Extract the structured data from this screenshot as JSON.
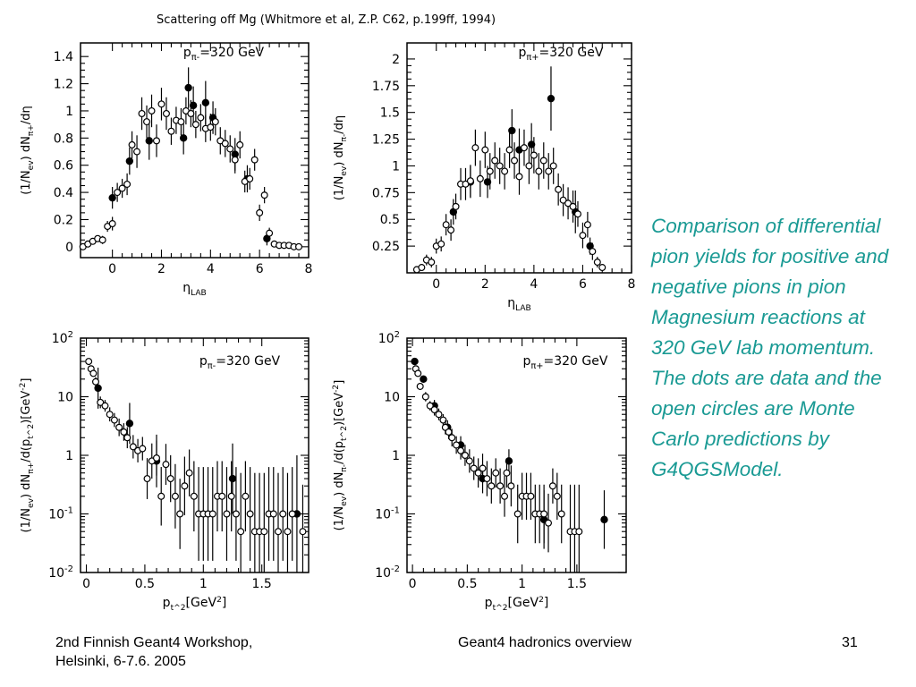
{
  "figure_title": "Scattering off Mg (Whitmore et al, Z.P. C62, p.199ff, 1994)",
  "side_text": "Comparison of differential pion yields for positive and negative pions in pion Magnesium reactions at 320 GeV lab momentum. The dots are data and the open circles are Monte Carlo predictions by G4QGSModel.",
  "footer": {
    "left_line1": "2nd Finnish Geant4 Workshop,",
    "left_line2": "Helsinki, 6-7.6. 2005",
    "center": "Geant4 hadronics overview",
    "page": "31"
  },
  "chart_data": [
    {
      "type": "scatter",
      "annotation": "p_{π-}=320 GeV",
      "xlabel": "η_{LAB}",
      "ylabel": "(1/N_{ev}) dN_{π+}/dη",
      "xlim": [
        -1.3,
        8
      ],
      "ylim": [
        -0.08,
        1.5
      ],
      "yscale": "linear",
      "xticks": [
        0,
        2,
        4,
        6,
        8
      ],
      "yticks": [
        0,
        0.2,
        0.4,
        0.6,
        0.8,
        1,
        1.2,
        1.4
      ],
      "ytick_labels": [
        "0",
        "0.2",
        "0.4",
        "0.6",
        "0.8",
        "1",
        "1.2",
        "1.4"
      ],
      "series": [
        {
          "name": "data",
          "marker": "filled",
          "x": [
            0,
            0.7,
            1.5,
            2.9,
            3.1,
            3.3,
            3.8,
            4.1,
            5.0,
            5.5,
            6.3
          ],
          "y": [
            0.36,
            0.63,
            0.78,
            0.8,
            1.17,
            1.04,
            1.06,
            0.95,
            0.68,
            0.5,
            0.06
          ],
          "err": [
            0.08,
            0.1,
            0.14,
            0.12,
            0.15,
            0.14,
            0.16,
            0.12,
            0.12,
            0.1,
            0.05
          ]
        },
        {
          "name": "Monte Carlo",
          "marker": "open",
          "x": [
            -1.2,
            -1.0,
            -0.8,
            -0.6,
            -0.4,
            -0.2,
            0.0,
            0.2,
            0.4,
            0.6,
            0.8,
            1.0,
            1.2,
            1.4,
            1.6,
            1.8,
            2.0,
            2.2,
            2.4,
            2.6,
            2.8,
            3.0,
            3.2,
            3.4,
            3.6,
            3.8,
            4.0,
            4.2,
            4.4,
            4.6,
            4.8,
            5.0,
            5.2,
            5.4,
            5.6,
            5.8,
            6.0,
            6.2,
            6.4,
            6.6,
            6.8,
            7.0,
            7.2,
            7.4,
            7.6
          ],
          "y": [
            0.0,
            0.02,
            0.04,
            0.06,
            0.05,
            0.15,
            0.17,
            0.4,
            0.43,
            0.46,
            0.75,
            0.7,
            0.98,
            0.92,
            1.0,
            0.78,
            1.05,
            0.98,
            0.85,
            0.93,
            0.92,
            1.0,
            0.98,
            0.9,
            0.95,
            0.87,
            0.88,
            0.92,
            0.78,
            0.76,
            0.72,
            0.64,
            0.75,
            0.48,
            0.5,
            0.64,
            0.25,
            0.38,
            0.1,
            0.02,
            0.01,
            0.01,
            0.01,
            0.0,
            0.0
          ],
          "err": [
            0.01,
            0.01,
            0.02,
            0.02,
            0.03,
            0.04,
            0.05,
            0.07,
            0.07,
            0.08,
            0.1,
            0.12,
            0.12,
            0.12,
            0.12,
            0.12,
            0.12,
            0.12,
            0.1,
            0.1,
            0.1,
            0.1,
            0.1,
            0.1,
            0.1,
            0.1,
            0.1,
            0.1,
            0.1,
            0.1,
            0.1,
            0.1,
            0.1,
            0.08,
            0.08,
            0.08,
            0.06,
            0.06,
            0.04,
            0.01,
            0.01,
            0.01,
            0.01,
            0.01,
            0.01
          ]
        }
      ]
    },
    {
      "type": "scatter",
      "annotation": "p_{π+}=320 GeV",
      "xlabel": "η_{LAB}",
      "ylabel": "(1/N_{ev}) dN_{π-}/dη",
      "xlim": [
        -1.2,
        8
      ],
      "ylim": [
        0,
        2.15
      ],
      "yscale": "linear",
      "xticks": [
        0,
        2,
        4,
        6,
        8
      ],
      "yticks": [
        0.25,
        0.5,
        0.75,
        1,
        1.25,
        1.5,
        1.75,
        2
      ],
      "ytick_labels": [
        "0.25",
        "0.5",
        "0.75",
        "1",
        "1.25",
        "1.5",
        "1.75",
        "2"
      ],
      "series": [
        {
          "name": "data",
          "marker": "filled",
          "x": [
            0.7,
            1.4,
            2.1,
            3.1,
            3.4,
            3.9,
            4.7,
            5.7,
            6.3
          ],
          "y": [
            0.57,
            0.85,
            0.85,
            1.33,
            1.15,
            1.2,
            1.63,
            0.57,
            0.25
          ],
          "err": [
            0.12,
            0.15,
            0.15,
            0.2,
            0.2,
            0.2,
            0.3,
            0.2,
            0.08
          ]
        },
        {
          "name": "Monte Carlo",
          "marker": "open",
          "x": [
            -0.8,
            -0.6,
            -0.4,
            -0.2,
            0.0,
            0.2,
            0.4,
            0.6,
            0.8,
            1.0,
            1.2,
            1.4,
            1.6,
            1.8,
            2.0,
            2.2,
            2.4,
            2.6,
            2.8,
            3.0,
            3.2,
            3.4,
            3.6,
            3.8,
            4.0,
            4.2,
            4.4,
            4.6,
            4.8,
            5.0,
            5.2,
            5.4,
            5.6,
            5.8,
            6.0,
            6.2,
            6.4,
            6.6,
            6.8
          ],
          "y": [
            0.03,
            0.05,
            0.12,
            0.1,
            0.25,
            0.27,
            0.45,
            0.4,
            0.62,
            0.83,
            0.83,
            0.86,
            1.17,
            0.88,
            1.15,
            0.95,
            1.05,
            1.0,
            0.95,
            1.15,
            1.05,
            0.9,
            1.17,
            1.0,
            1.1,
            0.95,
            1.05,
            0.95,
            1.0,
            0.78,
            0.68,
            0.65,
            0.62,
            0.55,
            0.35,
            0.45,
            0.2,
            0.1,
            0.05
          ],
          "err": [
            0.02,
            0.03,
            0.05,
            0.05,
            0.07,
            0.07,
            0.1,
            0.1,
            0.12,
            0.15,
            0.15,
            0.15,
            0.17,
            0.17,
            0.17,
            0.17,
            0.17,
            0.17,
            0.17,
            0.17,
            0.17,
            0.17,
            0.17,
            0.17,
            0.17,
            0.17,
            0.17,
            0.17,
            0.17,
            0.15,
            0.15,
            0.15,
            0.15,
            0.12,
            0.12,
            0.12,
            0.08,
            0.05,
            0.03
          ]
        }
      ]
    },
    {
      "type": "scatter",
      "annotation": "p_{π-}=320 GeV",
      "xlabel": "p_t^2[GeV^2]",
      "ylabel": "(1/N_{ev}) dN_{π+}/d(p_t^2)[GeV^{-2}]",
      "xlim": [
        -0.05,
        1.9
      ],
      "ylim": [
        0.01,
        100
      ],
      "yscale": "log",
      "xticks": [
        0,
        0.5,
        1,
        1.5
      ],
      "yticks": [
        0.01,
        0.1,
        1,
        10,
        100
      ],
      "ytick_labels": [
        "10^-2",
        "10^-1",
        "1",
        "10",
        "10^2"
      ],
      "series": [
        {
          "name": "data",
          "marker": "filled",
          "x": [
            0.1,
            0.37,
            0.6,
            1.25,
            1.8
          ],
          "y": [
            14,
            3.5,
            0.8,
            0.4,
            0.1
          ],
          "err": [
            0.35,
            0.35,
            0.45,
            0.6,
            1.0
          ]
        },
        {
          "name": "Monte Carlo",
          "marker": "open",
          "x": [
            0.02,
            0.04,
            0.06,
            0.08,
            0.12,
            0.16,
            0.2,
            0.24,
            0.28,
            0.32,
            0.35,
            0.4,
            0.44,
            0.48,
            0.52,
            0.56,
            0.6,
            0.64,
            0.68,
            0.72,
            0.76,
            0.8,
            0.84,
            0.88,
            0.92,
            0.96,
            1.0,
            1.04,
            1.08,
            1.12,
            1.16,
            1.2,
            1.24,
            1.28,
            1.32,
            1.36,
            1.4,
            1.44,
            1.48,
            1.52,
            1.56,
            1.6,
            1.64,
            1.68,
            1.72,
            1.76,
            1.85
          ],
          "y": [
            40,
            30,
            25,
            18,
            8,
            7,
            5,
            4,
            3,
            2.5,
            2,
            1.4,
            1.2,
            1.3,
            0.4,
            0.8,
            0.9,
            0.2,
            0.7,
            0.4,
            0.2,
            0.1,
            0.3,
            0.5,
            0.2,
            0.1,
            0.1,
            0.1,
            0.1,
            0.2,
            0.2,
            0.1,
            0.2,
            0.1,
            0.05,
            0.2,
            0.1,
            0.05,
            0.05,
            0.05,
            0.1,
            0.1,
            0.05,
            0.1,
            0.05,
            0.1,
            0.05
          ],
          "err": [
            0.05,
            0.05,
            0.05,
            0.08,
            0.1,
            0.1,
            0.12,
            0.12,
            0.15,
            0.15,
            0.18,
            0.2,
            0.2,
            0.2,
            0.35,
            0.3,
            0.3,
            0.5,
            0.35,
            0.4,
            0.55,
            0.6,
            0.5,
            0.4,
            0.6,
            0.8,
            0.8,
            0.8,
            0.8,
            0.6,
            0.6,
            0.8,
            0.6,
            0.8,
            1.0,
            0.6,
            0.8,
            1.0,
            1.0,
            1.0,
            0.8,
            0.8,
            1.0,
            0.8,
            1.0,
            0.8,
            0.8
          ]
        }
      ]
    },
    {
      "type": "scatter",
      "annotation": "p_{π+}=320 GeV",
      "xlabel": "p_t^2[GeV^2]",
      "ylabel": "(1/N_{ev}) dN_{π-}/d(p_t^2)[GeV^{-2}]",
      "xlim": [
        -0.05,
        1.95
      ],
      "ylim": [
        0.01,
        100
      ],
      "yscale": "log",
      "xticks": [
        0,
        0.5,
        1,
        1.5
      ],
      "yticks": [
        0.01,
        0.1,
        1,
        10,
        100
      ],
      "ytick_labels": [
        "10^-2",
        "10^-1",
        "1",
        "10",
        "10^2"
      ],
      "series": [
        {
          "name": "data",
          "marker": "filled",
          "x": [
            0.02,
            0.1,
            0.2,
            0.32,
            0.44,
            0.64,
            0.88,
            1.2,
            1.75
          ],
          "y": [
            40,
            20,
            7,
            3,
            1.5,
            0.4,
            0.8,
            0.08,
            0.08
          ],
          "err": [
            0.05,
            0.06,
            0.1,
            0.12,
            0.15,
            0.25,
            0.2,
            0.5,
            0.5
          ]
        },
        {
          "name": "Monte Carlo",
          "marker": "open",
          "x": [
            0.03,
            0.05,
            0.07,
            0.12,
            0.16,
            0.2,
            0.24,
            0.28,
            0.3,
            0.33,
            0.36,
            0.4,
            0.44,
            0.48,
            0.52,
            0.56,
            0.6,
            0.64,
            0.68,
            0.72,
            0.76,
            0.8,
            0.84,
            0.86,
            0.9,
            0.96,
            1.0,
            1.04,
            1.08,
            1.12,
            1.16,
            1.2,
            1.24,
            1.28,
            1.32,
            1.36,
            1.44,
            1.48,
            1.52
          ],
          "y": [
            30,
            25,
            15,
            10,
            7,
            6,
            5,
            4,
            3,
            2.5,
            2,
            1.5,
            1.2,
            1,
            0.8,
            0.6,
            0.5,
            0.6,
            0.4,
            0.3,
            0.5,
            0.3,
            0.2,
            0.5,
            0.3,
            0.1,
            0.2,
            0.2,
            0.2,
            0.1,
            0.1,
            0.1,
            0.07,
            0.3,
            0.2,
            0.1,
            0.05,
            0.05,
            0.05
          ],
          "err": [
            0.05,
            0.05,
            0.06,
            0.08,
            0.08,
            0.1,
            0.1,
            0.1,
            0.12,
            0.12,
            0.15,
            0.15,
            0.15,
            0.18,
            0.2,
            0.2,
            0.25,
            0.25,
            0.3,
            0.3,
            0.25,
            0.3,
            0.35,
            0.25,
            0.35,
            0.5,
            0.4,
            0.4,
            0.4,
            0.5,
            0.5,
            0.5,
            0.5,
            0.3,
            0.4,
            0.5,
            0.8,
            0.8,
            0.8
          ]
        }
      ]
    }
  ]
}
